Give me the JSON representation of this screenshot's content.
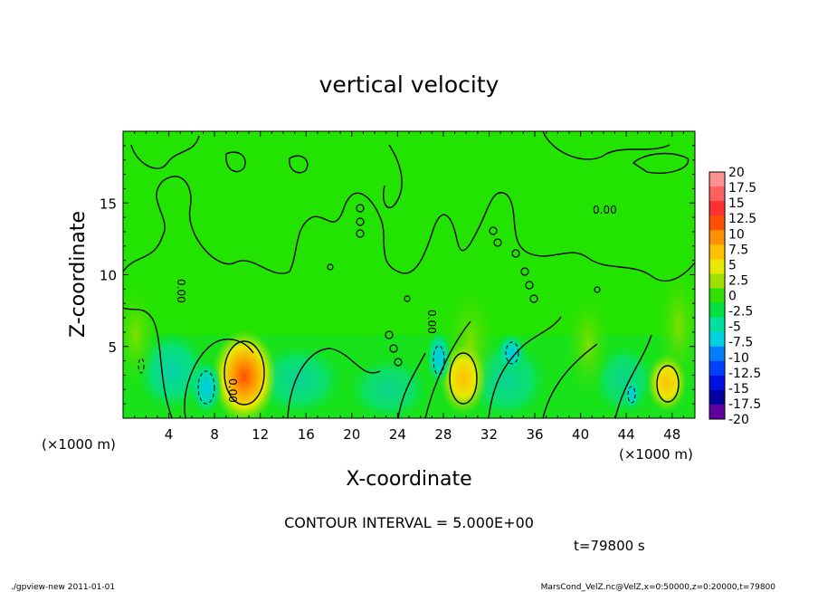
{
  "chart_data": {
    "type": "heatmap",
    "title": "vertical velocity",
    "xlabel": "X-coordinate",
    "ylabel": "Z-coordinate",
    "x_unit_left": "(×1000 m)",
    "x_unit_right": "(×1000 m)",
    "xlim": [
      0,
      50
    ],
    "ylim": [
      0,
      20
    ],
    "x_ticks": [
      4,
      8,
      12,
      16,
      20,
      24,
      28,
      32,
      36,
      40,
      44,
      48
    ],
    "y_ticks": [
      5,
      10,
      15
    ],
    "contour_interval": "CONTOUR INTERVAL = 5.000E+00",
    "time_label": "t=79800 s",
    "contour_label": "0.00",
    "colorbar": {
      "labels": [
        "20",
        "17.5",
        "15",
        "12.5",
        "10",
        "7.5",
        "5",
        "2.5",
        "0",
        "-2.5",
        "-5",
        "-7.5",
        "-10",
        "-12.5",
        "-15",
        "-17.5",
        "-20"
      ],
      "colors": [
        "#ff9090",
        "#ff6060",
        "#ff3030",
        "#ff5000",
        "#ff9000",
        "#ffc000",
        "#e8e800",
        "#a0e000",
        "#30e000",
        "#00e040",
        "#00e0a0",
        "#00d0e0",
        "#0080ff",
        "#0040ff",
        "#0010e0",
        "#0000a0",
        "#6000a0"
      ]
    },
    "features": [
      {
        "kind": "updraft",
        "x": 10.5,
        "z": 3.0,
        "peak": 10
      },
      {
        "kind": "updraft",
        "x": 29.5,
        "z": 2.8,
        "peak": 7.5
      },
      {
        "kind": "updraft",
        "x": 47.5,
        "z": 2.5,
        "peak": 7.5
      },
      {
        "kind": "downdraft",
        "x": 7.5,
        "z": 2.2,
        "peak": -5
      },
      {
        "kind": "downdraft",
        "x": 27.5,
        "z": 4.0,
        "peak": -5
      },
      {
        "kind": "downdraft",
        "x": 33.5,
        "z": 4.5,
        "peak": -5
      },
      {
        "kind": "downdraft",
        "x": 44.5,
        "z": 1.8,
        "peak": -2.5
      }
    ]
  },
  "footer": {
    "left": "./gpview-new   2011-01-01",
    "right": "MarsCond_VelZ.nc@VelZ,x=0:50000,z=0:20000,t=79800"
  }
}
